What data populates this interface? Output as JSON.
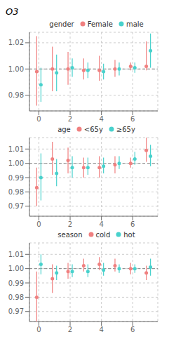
{
  "chart_data": [
    {
      "type": "scatter",
      "title": "gender",
      "ylabel": "O3",
      "x": [
        0,
        1,
        2,
        3,
        4,
        5,
        6,
        7
      ],
      "xlim": [
        -0.6,
        7.6
      ],
      "xticks": [
        0,
        2,
        4,
        6
      ],
      "ylim": [
        0.968,
        1.028
      ],
      "yticks": [
        0.98,
        {
          "value": 1.0,
          "label": "1.00"
        },
        1.02
      ],
      "grid": true,
      "reference_lines": [
        1.0
      ],
      "series": [
        {
          "name": "Female",
          "color": "#F08080",
          "values": [
            0.998,
            1.0,
            1.0,
            0.999,
            0.999,
            1.0,
            1.002,
            1.002
          ],
          "lo": [
            0.972,
            0.983,
            0.988,
            0.992,
            0.991,
            0.994,
            0.999,
            0.999
          ],
          "hi": [
            1.025,
            1.017,
            1.013,
            1.008,
            1.01,
            1.007,
            1.005,
            1.021
          ]
        },
        {
          "name": "male",
          "color": "#48D1CC",
          "values": [
            0.988,
            0.997,
            1.001,
            0.999,
            0.998,
            1.0,
            1.001,
            1.014
          ],
          "lo": [
            0.975,
            0.983,
            0.994,
            0.993,
            0.992,
            0.995,
            0.997,
            1.001
          ],
          "hi": [
            1.001,
            1.011,
            1.008,
            1.005,
            1.004,
            1.005,
            1.005,
            1.027
          ]
        }
      ]
    },
    {
      "type": "scatter",
      "title": "age",
      "x": [
        0,
        1,
        2,
        3,
        4,
        5,
        6,
        7
      ],
      "xlim": [
        -0.6,
        7.6
      ],
      "xticks": [
        0,
        2,
        4,
        6
      ],
      "ylim": [
        0.963,
        1.018
      ],
      "yticks": [
        0.97,
        0.98,
        0.99,
        {
          "value": 1.0,
          "label": "1.00"
        },
        1.01
      ],
      "grid": true,
      "reference_lines": [
        1.0
      ],
      "series": [
        {
          "name": "<65y",
          "color": "#F08080",
          "values": [
            0.983,
            1.003,
            1.002,
            0.997,
            0.997,
            0.999,
            1.0,
            1.009
          ],
          "lo": [
            0.97,
            0.992,
            0.993,
            0.99,
            0.99,
            0.993,
            0.997,
            1.001
          ],
          "hi": [
            0.997,
            1.015,
            1.011,
            1.004,
            1.005,
            1.005,
            1.004,
            1.018
          ]
        },
        {
          "name": "≥65y",
          "color": "#48D1CC",
          "values": [
            0.99,
            0.993,
            0.997,
            0.997,
            0.998,
            1.0,
            1.003,
            1.005
          ],
          "lo": [
            0.974,
            0.984,
            0.99,
            0.992,
            0.993,
            0.996,
            0.999,
            0.998
          ],
          "hi": [
            1.007,
            1.003,
            1.005,
            1.004,
            1.004,
            1.005,
            1.008,
            1.013
          ]
        }
      ]
    },
    {
      "type": "scatter",
      "title": "season",
      "x": [
        0,
        1,
        2,
        3,
        4,
        5,
        6,
        7
      ],
      "xlim": [
        -0.6,
        7.6
      ],
      "xticks": [
        0,
        2,
        4,
        6
      ],
      "ylim": [
        0.963,
        1.018
      ],
      "yticks": [
        0.97,
        0.98,
        0.99,
        {
          "value": 1.0,
          "label": "1.00"
        },
        1.01
      ],
      "grid": true,
      "reference_lines": [
        1.0
      ],
      "series": [
        {
          "name": "cold",
          "color": "#F08080",
          "values": [
            0.98,
            0.993,
            0.998,
            1.002,
            1.003,
            1.002,
            1.0,
            0.997
          ],
          "lo": [
            0.963,
            0.983,
            0.993,
            0.998,
            0.999,
            0.998,
            0.996,
            0.992
          ],
          "hi": [
            0.998,
            1.003,
            1.004,
            1.007,
            1.008,
            1.007,
            1.004,
            1.002
          ]
        },
        {
          "name": "hot",
          "color": "#48D1CC",
          "values": [
            1.003,
            0.997,
            0.998,
            0.998,
            0.999,
            1.0,
            1.0,
            1.001
          ],
          "lo": [
            0.996,
            0.992,
            0.994,
            0.994,
            0.995,
            0.997,
            0.997,
            0.995
          ],
          "hi": [
            1.01,
            1.002,
            1.003,
            1.003,
            1.004,
            1.003,
            1.003,
            1.007
          ]
        }
      ]
    }
  ]
}
